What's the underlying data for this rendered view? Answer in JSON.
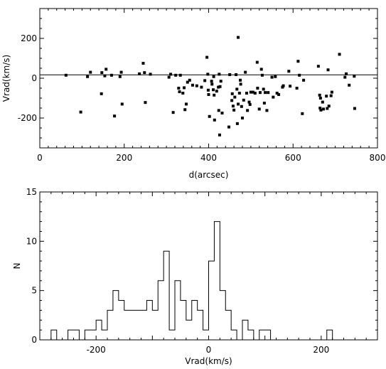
{
  "chart_data": [
    {
      "type": "scatter",
      "xlabel": "d(arcsec)",
      "ylabel": "Vrad(km/s)",
      "xlim": [
        0,
        800
      ],
      "ylim": [
        -350,
        350
      ],
      "xticks": [
        0,
        200,
        400,
        600,
        800
      ],
      "yticks": [
        -200,
        0,
        200
      ],
      "hline": 17,
      "points": [
        [
          62,
          15
        ],
        [
          97,
          -170
        ],
        [
          113,
          8
        ],
        [
          120,
          30
        ],
        [
          146,
          -78
        ],
        [
          147,
          28
        ],
        [
          154,
          12
        ],
        [
          157,
          45
        ],
        [
          170,
          15
        ],
        [
          177,
          -190
        ],
        [
          190,
          8
        ],
        [
          193,
          30
        ],
        [
          195,
          -130
        ],
        [
          236,
          22
        ],
        [
          245,
          75
        ],
        [
          248,
          28
        ],
        [
          250,
          -122
        ],
        [
          262,
          20
        ],
        [
          306,
          5
        ],
        [
          310,
          20
        ],
        [
          316,
          -172
        ],
        [
          322,
          15
        ],
        [
          329,
          -50
        ],
        [
          331,
          -68
        ],
        [
          333,
          15
        ],
        [
          339,
          -75
        ],
        [
          342,
          -48
        ],
        [
          344,
          -158
        ],
        [
          347,
          -130
        ],
        [
          350,
          -20
        ],
        [
          355,
          -10
        ],
        [
          362,
          -35
        ],
        [
          372,
          -38
        ],
        [
          383,
          -45
        ],
        [
          391,
          -12
        ],
        [
          396,
          105
        ],
        [
          398,
          20
        ],
        [
          399,
          -60
        ],
        [
          400,
          -82
        ],
        [
          402,
          -192
        ],
        [
          407,
          -15
        ],
        [
          408,
          -30
        ],
        [
          411,
          -58
        ],
        [
          412,
          8
        ],
        [
          413,
          -85
        ],
        [
          414,
          -210
        ],
        [
          419,
          -65
        ],
        [
          423,
          -45
        ],
        [
          424,
          -162
        ],
        [
          425,
          20
        ],
        [
          426,
          -285
        ],
        [
          427,
          -42
        ],
        [
          429,
          -15
        ],
        [
          432,
          -175
        ],
        [
          448,
          -245
        ],
        [
          450,
          18
        ],
        [
          455,
          -112
        ],
        [
          456,
          -78
        ],
        [
          458,
          -140
        ],
        [
          460,
          -160
        ],
        [
          462,
          -95
        ],
        [
          465,
          18
        ],
        [
          467,
          -55
        ],
        [
          468,
          -228
        ],
        [
          470,
          -130
        ],
        [
          470,
          205
        ],
        [
          473,
          -75
        ],
        [
          475,
          -10
        ],
        [
          476,
          -30
        ],
        [
          478,
          -142
        ],
        [
          480,
          -200
        ],
        [
          483,
          -110
        ],
        [
          487,
          30
        ],
        [
          490,
          -75
        ],
        [
          492,
          -162
        ],
        [
          496,
          -120
        ],
        [
          498,
          -132
        ],
        [
          500,
          -70
        ],
        [
          505,
          -70
        ],
        [
          510,
          -75
        ],
        [
          515,
          80
        ],
        [
          516,
          -50
        ],
        [
          520,
          -155
        ],
        [
          522,
          -72
        ],
        [
          525,
          45
        ],
        [
          527,
          15
        ],
        [
          530,
          -55
        ],
        [
          532,
          -125
        ],
        [
          534,
          -72
        ],
        [
          538,
          -162
        ],
        [
          541,
          -72
        ],
        [
          550,
          5
        ],
        [
          553,
          -95
        ],
        [
          558,
          8
        ],
        [
          562,
          -75
        ],
        [
          566,
          -82
        ],
        [
          575,
          -45
        ],
        [
          577,
          -38
        ],
        [
          590,
          35
        ],
        [
          593,
          -40
        ],
        [
          609,
          -50
        ],
        [
          612,
          85
        ],
        [
          615,
          15
        ],
        [
          622,
          -178
        ],
        [
          625,
          -10
        ],
        [
          660,
          60
        ],
        [
          663,
          -85
        ],
        [
          664,
          -150
        ],
        [
          665,
          -100
        ],
        [
          666,
          -160
        ],
        [
          670,
          -120
        ],
        [
          672,
          -155
        ],
        [
          679,
          -90
        ],
        [
          681,
          -152
        ],
        [
          683,
          42
        ],
        [
          685,
          -140
        ],
        [
          690,
          -88
        ],
        [
          692,
          -70
        ],
        [
          710,
          120
        ],
        [
          723,
          5
        ],
        [
          726,
          22
        ],
        [
          733,
          -35
        ],
        [
          745,
          10
        ],
        [
          746,
          -152
        ]
      ]
    },
    {
      "type": "bar",
      "style": "step-histogram",
      "xlabel": "Vrad(km/s)",
      "ylabel": "N",
      "xlim": [
        -300,
        300
      ],
      "ylim": [
        0,
        15
      ],
      "xticks": [
        -200,
        0,
        200
      ],
      "yticks": [
        0,
        5,
        10,
        15
      ],
      "bin_width": 10,
      "bin_start": -280,
      "counts": [
        1,
        0,
        0,
        1,
        1,
        0,
        1,
        1,
        2,
        1,
        3,
        5,
        4,
        3,
        3,
        3,
        3,
        4,
        3,
        6,
        9,
        1,
        6,
        4,
        2,
        4,
        3,
        1,
        8,
        12,
        5,
        3,
        1,
        0,
        2,
        1,
        0,
        1,
        1,
        0,
        0,
        0,
        0,
        0,
        0,
        0,
        0,
        0,
        0,
        1
      ]
    }
  ]
}
